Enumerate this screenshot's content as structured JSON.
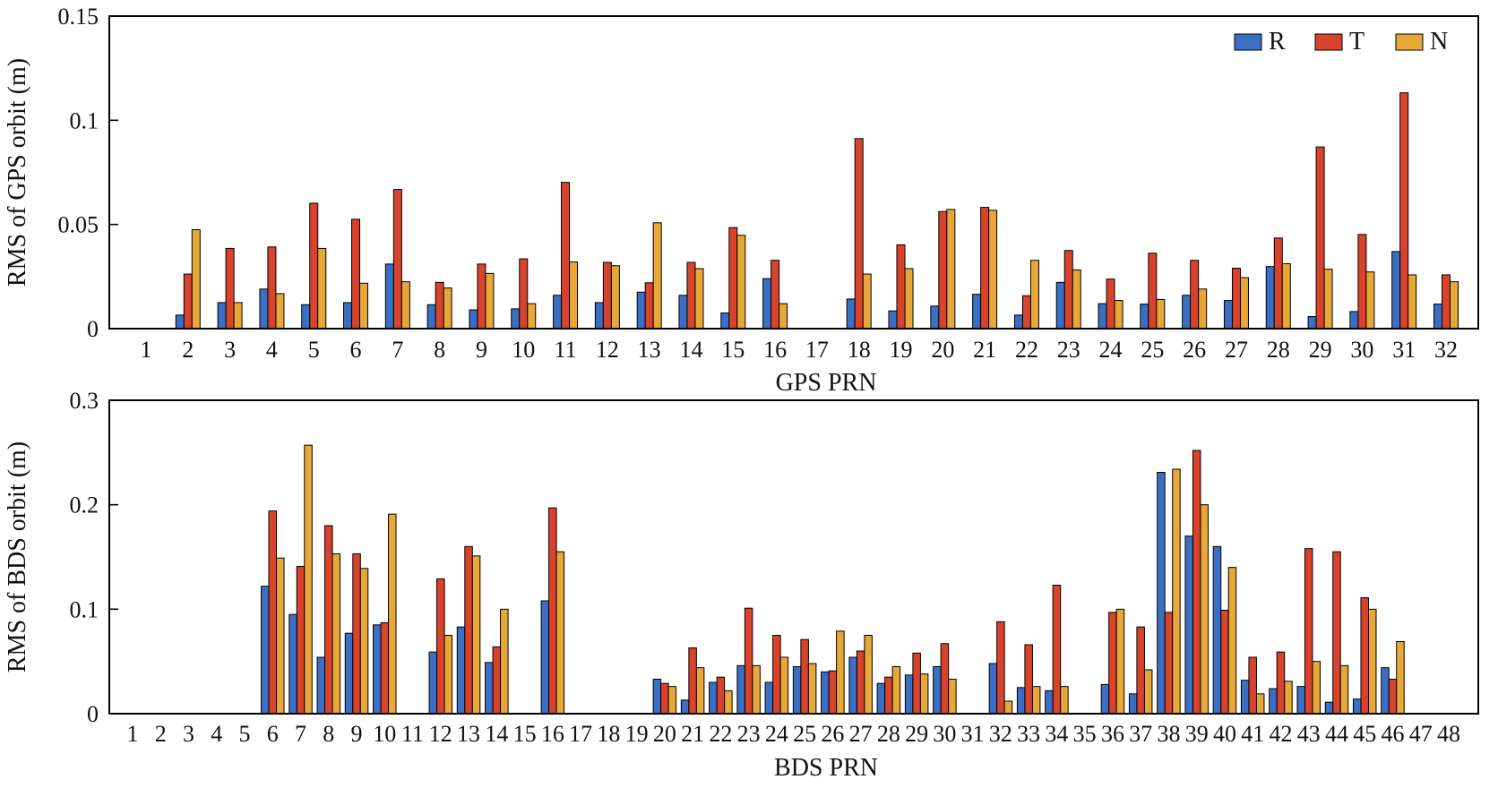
{
  "chart_data": [
    {
      "type": "bar",
      "xlabel": "GPS PRN",
      "ylabel": "RMS of GPS orbit (m)",
      "ylim": [
        0,
        0.15
      ],
      "yticks": [
        "0",
        "0.05",
        "0.1",
        "0.15"
      ],
      "ytick_values": [
        0,
        0.05,
        0.1,
        0.15
      ],
      "legend_position": "top-right",
      "categories": [
        "1",
        "2",
        "3",
        "4",
        "5",
        "6",
        "7",
        "8",
        "9",
        "10",
        "11",
        "12",
        "13",
        "14",
        "15",
        "16",
        "17",
        "18",
        "19",
        "20",
        "21",
        "22",
        "23",
        "24",
        "25",
        "26",
        "27",
        "28",
        "29",
        "30",
        "31",
        "32"
      ],
      "series": [
        {
          "name": "R",
          "color": "#3a6fc4",
          "values": [
            0,
            0.0065,
            0.0125,
            0.019,
            0.0115,
            0.0125,
            0.031,
            0.0115,
            0.009,
            0.0095,
            0.016,
            0.0125,
            0.0175,
            0.016,
            0.0075,
            0.024,
            0,
            0.0142,
            0.0085,
            0.0108,
            0.0165,
            0.0065,
            0.0222,
            0.012,
            0.0118,
            0.016,
            0.0135,
            0.0298,
            0.0058,
            0.0082,
            0.037,
            0.0118
          ]
        },
        {
          "name": "T",
          "color": "#d8432c",
          "values": [
            0,
            0.0262,
            0.0385,
            0.0392,
            0.0602,
            0.0525,
            0.0668,
            0.0222,
            0.031,
            0.0335,
            0.0702,
            0.0318,
            0.022,
            0.0318,
            0.0485,
            0.0328,
            0,
            0.0912,
            0.0402,
            0.0562,
            0.0582,
            0.0158,
            0.0375,
            0.0238,
            0.0362,
            0.0328,
            0.029,
            0.0435,
            0.0872,
            0.0452,
            0.1132,
            0.0258
          ]
        },
        {
          "name": "N",
          "color": "#e8a838",
          "values": [
            0,
            0.0475,
            0.0125,
            0.0168,
            0.0385,
            0.0218,
            0.0225,
            0.0195,
            0.0265,
            0.012,
            0.032,
            0.0302,
            0.0508,
            0.0288,
            0.0448,
            0.012,
            0,
            0.0262,
            0.0288,
            0.0572,
            0.0568,
            0.0328,
            0.0282,
            0.0135,
            0.014,
            0.019,
            0.0245,
            0.0312,
            0.0285,
            0.0272,
            0.0258,
            0.0225
          ]
        }
      ]
    },
    {
      "type": "bar",
      "xlabel": "BDS PRN",
      "ylabel": "RMS of BDS orbit (m)",
      "ylim": [
        0,
        0.3
      ],
      "yticks": [
        "0",
        "0.1",
        "0.2",
        "0.3"
      ],
      "ytick_values": [
        0,
        0.1,
        0.2,
        0.3
      ],
      "categories": [
        "1",
        "2",
        "3",
        "4",
        "5",
        "6",
        "7",
        "8",
        "9",
        "10",
        "11",
        "12",
        "13",
        "14",
        "15",
        "16",
        "17",
        "18",
        "19",
        "20",
        "21",
        "22",
        "23",
        "24",
        "25",
        "26",
        "27",
        "28",
        "29",
        "30",
        "31",
        "32",
        "33",
        "34",
        "35",
        "36",
        "37",
        "38",
        "39",
        "40",
        "41",
        "42",
        "43",
        "44",
        "45",
        "46",
        "47",
        "48"
      ],
      "series": [
        {
          "name": "R",
          "color": "#3a6fc4",
          "values": [
            0,
            0,
            0,
            0,
            0,
            0.122,
            0.095,
            0.054,
            0.077,
            0.085,
            0,
            0.059,
            0.083,
            0.049,
            0,
            0.108,
            0,
            0,
            0,
            0.033,
            0.013,
            0.03,
            0.046,
            0.03,
            0.045,
            0.04,
            0.054,
            0.029,
            0.037,
            0.045,
            0,
            0.048,
            0.025,
            0.022,
            0,
            0.028,
            0.019,
            0.231,
            0.17,
            0.16,
            0.032,
            0.024,
            0.026,
            0.011,
            0.014,
            0.044,
            0,
            0
          ]
        },
        {
          "name": "T",
          "color": "#d8432c",
          "values": [
            0,
            0,
            0,
            0,
            0,
            0.194,
            0.141,
            0.18,
            0.153,
            0.087,
            0,
            0.129,
            0.16,
            0.064,
            0,
            0.197,
            0,
            0,
            0,
            0.029,
            0.063,
            0.035,
            0.101,
            0.075,
            0.071,
            0.041,
            0.06,
            0.035,
            0.058,
            0.067,
            0,
            0.088,
            0.066,
            0.123,
            0,
            0.097,
            0.083,
            0.097,
            0.252,
            0.099,
            0.054,
            0.059,
            0.158,
            0.155,
            0.111,
            0.033,
            0,
            0
          ]
        },
        {
          "name": "N",
          "color": "#e8a838",
          "values": [
            0,
            0,
            0,
            0,
            0,
            0.149,
            0.257,
            0.153,
            0.139,
            0.191,
            0,
            0.075,
            0.151,
            0.1,
            0,
            0.155,
            0,
            0,
            0,
            0.026,
            0.044,
            0.022,
            0.046,
            0.054,
            0.048,
            0.079,
            0.075,
            0.045,
            0.038,
            0.033,
            0,
            0.012,
            0.026,
            0.026,
            0,
            0.1,
            0.042,
            0.234,
            0.2,
            0.14,
            0.019,
            0.031,
            0.05,
            0.046,
            0.1,
            0.069,
            0,
            0
          ]
        }
      ]
    }
  ]
}
